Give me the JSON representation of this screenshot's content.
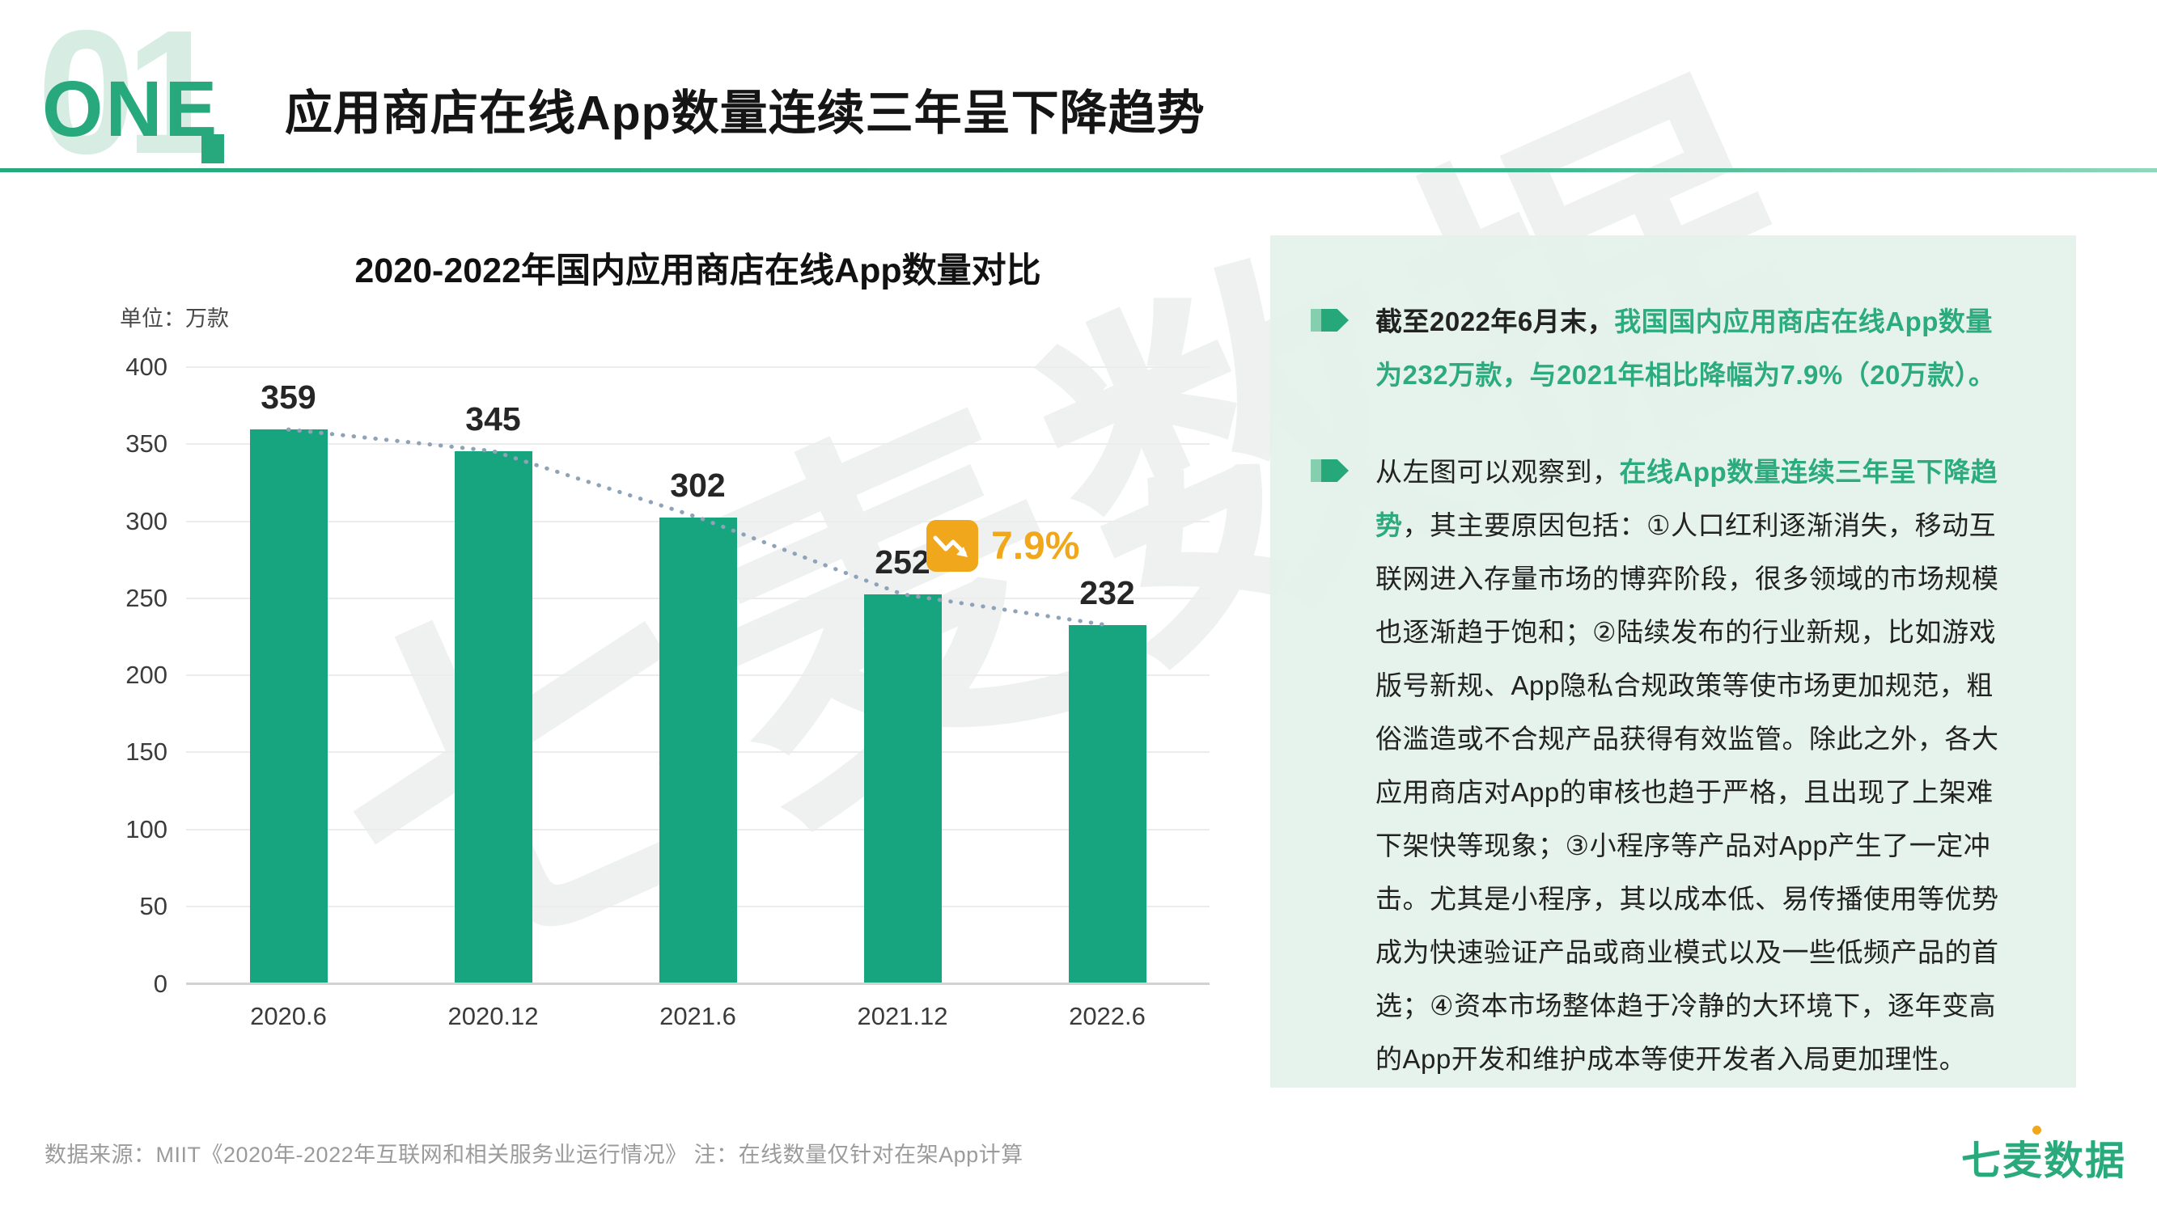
{
  "header": {
    "section_number": "01",
    "section_word": "ONE",
    "title": "应用商店在线App数量连续三年呈下降趋势"
  },
  "chart_data": {
    "type": "bar",
    "title": "2020-2022年国内应用商店在线App数量对比",
    "unit_label": "单位：万款",
    "categories": [
      "2020.6",
      "2020.12",
      "2021.6",
      "2021.12",
      "2022.6"
    ],
    "values": [
      359,
      345,
      302,
      252,
      232
    ],
    "ylim": [
      0,
      400
    ],
    "yticks": [
      400,
      350,
      300,
      250,
      200,
      150,
      100,
      50,
      0
    ],
    "grid": true,
    "bar_color": "#17a57f",
    "trend_line": {
      "style": "dotted",
      "color": "#8fa3b8",
      "connects": "bar tops, declining"
    },
    "annotation": {
      "label": "7.9%",
      "icon": "decline-trend-icon",
      "color": "#f0a71c"
    }
  },
  "panel": {
    "bullets": [
      {
        "plain": "截至2022年6月末，",
        "highlight": "我国国内应用商店在线App数量为232万款，与2021年相比降幅为7.9%（20万款）。",
        "body": ""
      },
      {
        "plain": "从左图可以观察到，",
        "highlight": "在线App数量连续三年呈下降趋势",
        "body": "，其主要原因包括：①人口红利逐渐消失，移动互联网进入存量市场的博弈阶段，很多领域的市场规模也逐渐趋于饱和；②陆续发布的行业新规，比如游戏版号新规、App隐私合规政策等使市场更加规范，粗俗滥造或不合规产品获得有效监管。除此之外，各大应用商店对App的审核也趋于严格，且出现了上架难下架快等现象；③小程序等产品对App产生了一定冲击。尤其是小程序，其以成本低、易传播使用等优势成为快速验证产品或商业模式以及一些低频产品的首选；④资本市场整体趋于冷静的大环境下，逐年变高的App开发和维护成本等使开发者入局更加理性。"
      }
    ]
  },
  "footer": {
    "source": "数据来源：MIIT《2020年-2022年互联网和相关服务业运行情况》 注：在线数量仅针对在架App计算",
    "logo": "七麦数据"
  },
  "watermark": "七麦数据",
  "colors": {
    "accent_green": "#27a87d",
    "highlight_green": "#2bab7e",
    "bar_green": "#17a57f",
    "panel_bg": "#e4f2eb",
    "orange": "#f0a71c",
    "ghost_number": "#d7ede4",
    "trend_dots": "#8fa3b8"
  }
}
